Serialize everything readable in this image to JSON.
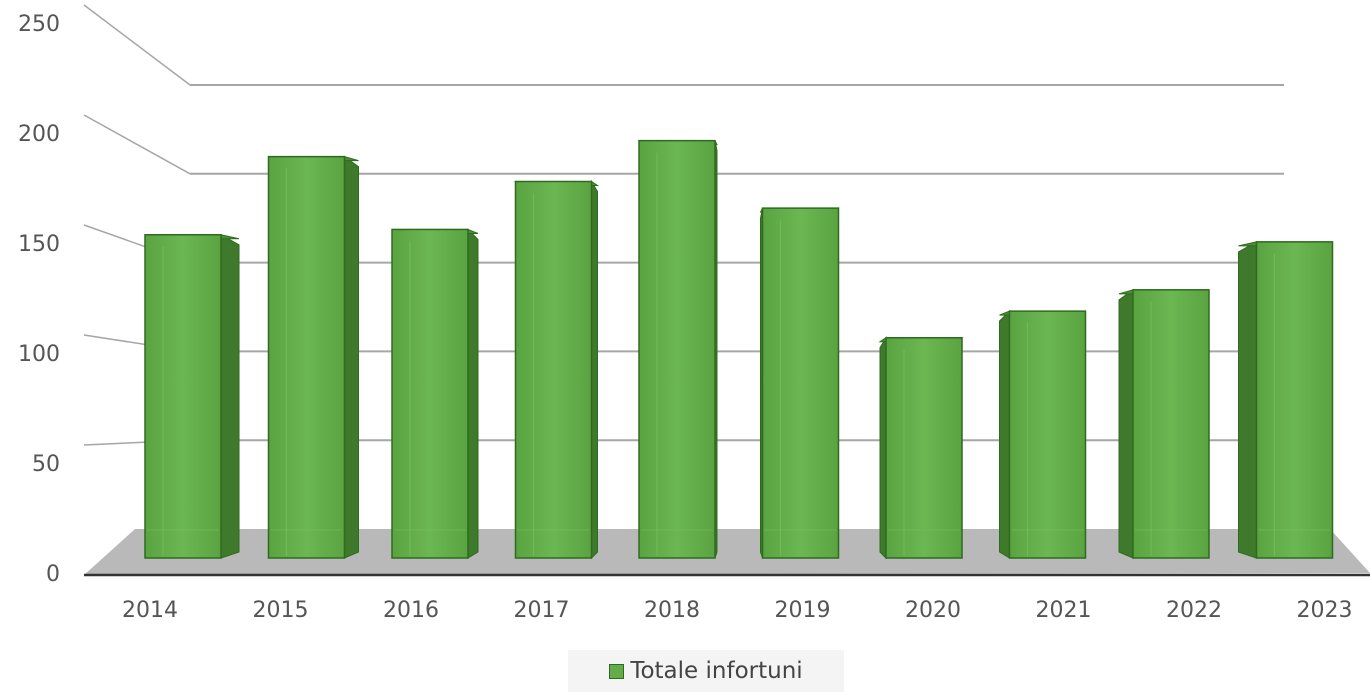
{
  "chart_data": {
    "type": "bar",
    "categories": [
      "2014",
      "2015",
      "2016",
      "2017",
      "2018",
      "2019",
      "2020",
      "2021",
      "2022",
      "2023"
    ],
    "series": [
      {
        "name": "Totale infortuni",
        "values": [
          182,
          226,
          185,
          212,
          235,
          197,
          124,
          139,
          151,
          178
        ]
      }
    ],
    "ylim": [
      0,
      250
    ],
    "yticks": [
      0,
      50,
      100,
      150,
      200,
      250
    ],
    "title": "",
    "xlabel": "",
    "ylabel": "",
    "legend_position": "bottom",
    "grid": true,
    "colors": {
      "bar_front": "#62ad49",
      "bar_side": "#3f7a2c",
      "bar_top": "#4c8e36",
      "bar_edge": "#2e6b1e",
      "floor": "#b9b9b9",
      "grid": "#a6a6a6"
    }
  }
}
